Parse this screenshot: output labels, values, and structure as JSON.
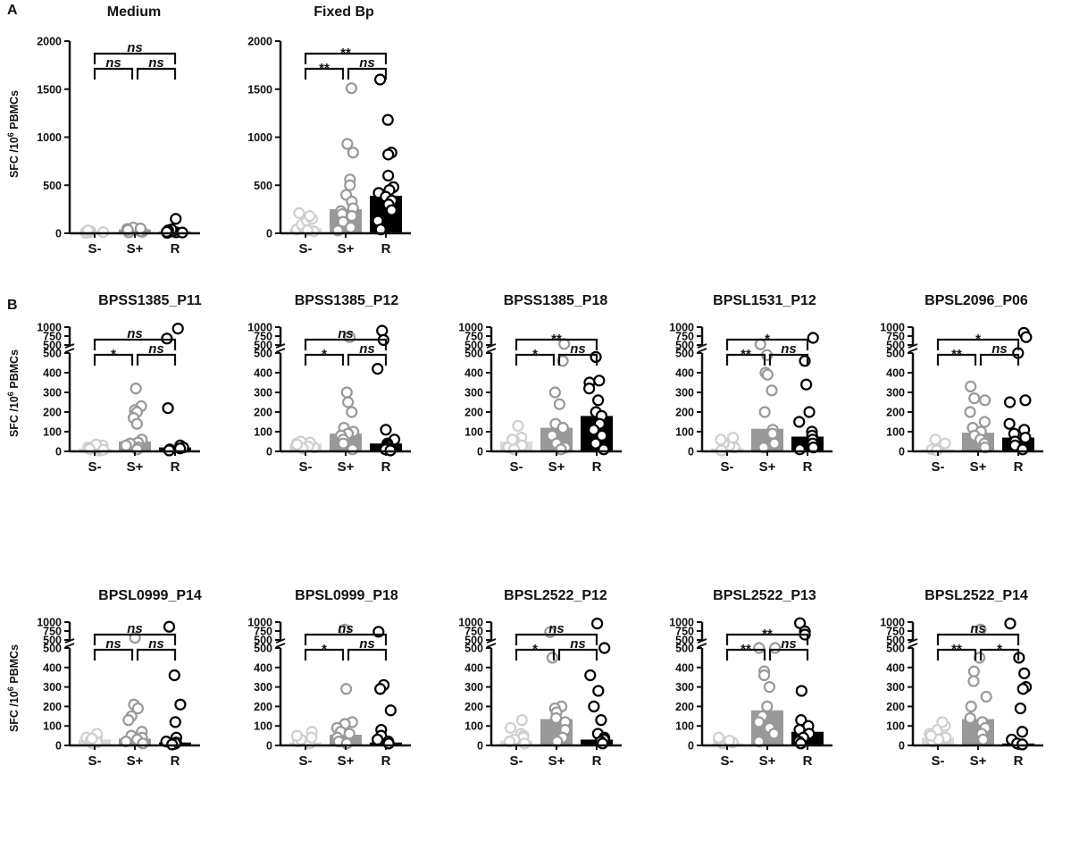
{
  "figure": {
    "panel_labels": [
      "A",
      "B"
    ],
    "y_axis_label_prefix": "SFC /10",
    "y_axis_label_sup": "6",
    "y_axis_label_suffix": " PBMCs"
  },
  "colors": {
    "S-": "#d9d9d9",
    "S+": "#999999",
    "R": "#000000",
    "axis": "#111111"
  },
  "chart_data": [
    {
      "type": "bar",
      "title": "Medium",
      "categories": [
        "S-",
        "S+",
        "R"
      ],
      "bar_values": [
        10,
        40,
        15
      ],
      "ylim": [
        0,
        2000
      ],
      "yticks": [
        "0",
        "500",
        "1000",
        "1500",
        "2000"
      ],
      "points": [
        [
          5,
          10,
          15,
          20,
          25,
          8,
          12,
          30
        ],
        [
          15,
          30,
          45,
          60,
          20,
          10,
          50,
          35
        ],
        [
          5,
          10,
          20,
          40,
          150,
          30,
          15,
          8
        ]
      ],
      "comparisons": [
        {
          "pair": "S- vs S+",
          "label": "ns"
        },
        {
          "pair": "S+ vs R",
          "label": "ns"
        },
        {
          "pair": "S- vs R",
          "label": "ns"
        }
      ]
    },
    {
      "type": "bar",
      "title": "Fixed Bp",
      "categories": [
        "S-",
        "S+",
        "R"
      ],
      "bar_values": [
        50,
        250,
        390
      ],
      "ylim": [
        0,
        2000
      ],
      "yticks": [
        "0",
        "500",
        "1000",
        "1500",
        "2000"
      ],
      "points": [
        [
          20,
          40,
          60,
          90,
          130,
          150,
          180,
          210,
          30
        ],
        [
          1510,
          930,
          840,
          560,
          500,
          400,
          330,
          260,
          230,
          200,
          180,
          120,
          60,
          30
        ],
        [
          1600,
          1180,
          840,
          820,
          600,
          480,
          450,
          420,
          380,
          340,
          300,
          240,
          130,
          40
        ]
      ],
      "comparisons": [
        {
          "pair": "S- vs S+",
          "label": "**"
        },
        {
          "pair": "S+ vs R",
          "label": "ns"
        },
        {
          "pair": "S- vs R",
          "label": "**"
        }
      ]
    },
    {
      "type": "bar",
      "title": "BPSS1385_P11",
      "categories": [
        "S-",
        "S+",
        "R"
      ],
      "bar_values": [
        15,
        50,
        20
      ],
      "ylim": [
        0,
        1000
      ],
      "yticks": [
        "0",
        "100",
        "200",
        "300",
        "400",
        "500",
        "500",
        "750",
        "1000"
      ],
      "points": [
        [
          5,
          10,
          15,
          20,
          25,
          30,
          35,
          12,
          8
        ],
        [
          320,
          230,
          210,
          200,
          170,
          140,
          60,
          45,
          40,
          30,
          20,
          10
        ],
        [
          960,
          680,
          220,
          30,
          20,
          15,
          10,
          5
        ]
      ],
      "comparisons": [
        {
          "pair": "S- vs S+",
          "label": "*"
        },
        {
          "pair": "S+ vs R",
          "label": "ns"
        },
        {
          "pair": "S- vs R",
          "label": "ns"
        }
      ]
    },
    {
      "type": "bar",
      "title": "BPSS1385_P12",
      "categories": [
        "S-",
        "S+",
        "R"
      ],
      "bar_values": [
        40,
        90,
        40
      ],
      "ylim": [
        0,
        1000
      ],
      "yticks": [
        "0",
        "100",
        "200",
        "300",
        "400",
        "500",
        "500",
        "750",
        "1000"
      ],
      "points": [
        [
          20,
          30,
          40,
          45,
          50,
          25,
          15,
          35
        ],
        [
          720,
          300,
          250,
          200,
          120,
          100,
          90,
          80,
          60,
          40,
          10
        ],
        [
          900,
          640,
          420,
          110,
          60,
          40,
          30,
          20,
          10,
          5
        ]
      ],
      "comparisons": [
        {
          "pair": "S- vs S+",
          "label": "*"
        },
        {
          "pair": "S+ vs R",
          "label": "ns"
        },
        {
          "pair": "S- vs R",
          "label": "ns"
        }
      ]
    },
    {
      "type": "bar",
      "title": "BPSS1385_P18",
      "categories": [
        "S-",
        "S+",
        "R"
      ],
      "bar_values": [
        50,
        120,
        180
      ],
      "ylim": [
        0,
        1000
      ],
      "yticks": [
        "0",
        "100",
        "200",
        "300",
        "400",
        "500",
        "500",
        "750",
        "1000"
      ],
      "points": [
        [
          130,
          70,
          50,
          40,
          30,
          20,
          60,
          10
        ],
        [
          530,
          460,
          300,
          240,
          140,
          120,
          80,
          40,
          20,
          10
        ],
        [
          480,
          360,
          350,
          320,
          260,
          200,
          180,
          140,
          110,
          80,
          40,
          10
        ]
      ],
      "comparisons": [
        {
          "pair": "S- vs S+",
          "label": "*"
        },
        {
          "pair": "S+ vs R",
          "label": "ns"
        },
        {
          "pair": "S- vs R",
          "label": "**"
        }
      ]
    },
    {
      "type": "bar",
      "title": "BPSL1531_P12",
      "categories": [
        "S-",
        "S+",
        "R"
      ],
      "bar_values": [
        15,
        115,
        75
      ],
      "ylim": [
        0,
        1000
      ],
      "yticks": [
        "0",
        "100",
        "200",
        "300",
        "400",
        "500",
        "500",
        "750",
        "1000"
      ],
      "points": [
        [
          10,
          20,
          30,
          40,
          60,
          70,
          5
        ],
        [
          520,
          490,
          400,
          390,
          310,
          200,
          110,
          90,
          40,
          20
        ],
        [
          700,
          460,
          340,
          200,
          150,
          100,
          80,
          60,
          40,
          20,
          10
        ]
      ],
      "comparisons": [
        {
          "pair": "S- vs S+",
          "label": "**"
        },
        {
          "pair": "S+ vs R",
          "label": "ns"
        },
        {
          "pair": "S- vs R",
          "label": "*"
        }
      ]
    },
    {
      "type": "bar",
      "title": "BPSL2096_P06",
      "categories": [
        "S-",
        "S+",
        "R"
      ],
      "bar_values": [
        10,
        95,
        70
      ],
      "ylim": [
        0,
        1000
      ],
      "yticks": [
        "0",
        "100",
        "200",
        "300",
        "400",
        "500",
        "500",
        "750",
        "1000"
      ],
      "points": [
        [
          10,
          20,
          40,
          60,
          5
        ],
        [
          330,
          270,
          260,
          200,
          150,
          120,
          100,
          80,
          60,
          40,
          20
        ],
        [
          840,
          720,
          500,
          260,
          250,
          140,
          110,
          90,
          70,
          50,
          30,
          10
        ]
      ],
      "comparisons": [
        {
          "pair": "S- vs S+",
          "label": "**"
        },
        {
          "pair": "S+ vs R",
          "label": "ns"
        },
        {
          "pair": "S- vs R",
          "label": "*"
        }
      ]
    },
    {
      "type": "bar",
      "title": "BPSL0999_P14",
      "categories": [
        "S-",
        "S+",
        "R"
      ],
      "bar_values": [
        30,
        35,
        15
      ],
      "ylim": [
        0,
        1000
      ],
      "yticks": [
        "0",
        "100",
        "200",
        "300",
        "400",
        "500",
        "500",
        "750",
        "1000"
      ],
      "points": [
        [
          10,
          20,
          30,
          40,
          50,
          60,
          25,
          15,
          35
        ],
        [
          560,
          210,
          190,
          150,
          130,
          70,
          50,
          40,
          30,
          20,
          10
        ],
        [
          870,
          360,
          210,
          120,
          40,
          20,
          15,
          10,
          5
        ]
      ],
      "comparisons": [
        {
          "pair": "S- vs S+",
          "label": "ns"
        },
        {
          "pair": "S+ vs R",
          "label": "ns"
        },
        {
          "pair": "S- vs R",
          "label": "ns"
        }
      ]
    },
    {
      "type": "bar",
      "title": "BPSL0999_P18",
      "categories": [
        "S-",
        "S+",
        "R"
      ],
      "bar_values": [
        15,
        55,
        15
      ],
      "ylim": [
        0,
        1000
      ],
      "yticks": [
        "0",
        "100",
        "200",
        "300",
        "400",
        "500",
        "500",
        "750",
        "1000"
      ],
      "points": [
        [
          10,
          20,
          30,
          50,
          70,
          40
        ],
        [
          790,
          290,
          120,
          110,
          90,
          70,
          60,
          40,
          20,
          10
        ],
        [
          730,
          310,
          290,
          180,
          80,
          50,
          30,
          20,
          10
        ]
      ],
      "comparisons": [
        {
          "pair": "S- vs S+",
          "label": "*"
        },
        {
          "pair": "S+ vs R",
          "label": "ns"
        },
        {
          "pair": "S- vs R",
          "label": "ns"
        }
      ]
    },
    {
      "type": "bar",
      "title": "BPSL2522_P12",
      "categories": [
        "S-",
        "S+",
        "R"
      ],
      "bar_values": [
        25,
        135,
        30
      ],
      "ylim": [
        0,
        1000
      ],
      "yticks": [
        "0",
        "100",
        "200",
        "300",
        "400",
        "500",
        "500",
        "750",
        "1000"
      ],
      "points": [
        [
          130,
          90,
          60,
          50,
          40,
          30,
          20,
          10
        ],
        [
          720,
          450,
          200,
          190,
          170,
          140,
          120,
          80,
          40,
          20
        ],
        [
          960,
          500,
          360,
          280,
          200,
          130,
          60,
          40,
          30,
          20,
          10
        ]
      ],
      "comparisons": [
        {
          "pair": "S- vs S+",
          "label": "*"
        },
        {
          "pair": "S+ vs R",
          "label": "ns"
        },
        {
          "pair": "S- vs R",
          "label": "ns"
        }
      ]
    },
    {
      "type": "bar",
      "title": "BPSL2522_P13",
      "categories": [
        "S-",
        "S+",
        "R"
      ],
      "bar_values": [
        10,
        180,
        70
      ],
      "ylim": [
        0,
        1000
      ],
      "yticks": [
        "0",
        "100",
        "200",
        "300",
        "400",
        "500",
        "500",
        "750",
        "1000"
      ],
      "points": [
        [
          10,
          20,
          30,
          40,
          15,
          25
        ],
        [
          500,
          500,
          380,
          360,
          300,
          200,
          150,
          120,
          90,
          60,
          20
        ],
        [
          970,
          740,
          650,
          280,
          130,
          100,
          80,
          60,
          40,
          20,
          10
        ]
      ],
      "comparisons": [
        {
          "pair": "S- vs S+",
          "label": "**"
        },
        {
          "pair": "S+ vs R",
          "label": "ns"
        },
        {
          "pair": "S- vs R",
          "label": "**"
        }
      ]
    },
    {
      "type": "bar",
      "title": "BPSL2522_P14",
      "categories": [
        "S-",
        "S+",
        "R"
      ],
      "bar_values": [
        40,
        135,
        10
      ],
      "ylim": [
        0,
        1000
      ],
      "yticks": [
        "0",
        "100",
        "200",
        "300",
        "400",
        "500",
        "500",
        "750",
        "1000"
      ],
      "points": [
        [
          20,
          40,
          60,
          80,
          100,
          120,
          30,
          50
        ],
        [
          790,
          450,
          380,
          330,
          250,
          200,
          140,
          120,
          90,
          60,
          30
        ],
        [
          960,
          450,
          370,
          300,
          290,
          190,
          70,
          30,
          10,
          5
        ]
      ],
      "comparisons": [
        {
          "pair": "S- vs S+",
          "label": "**"
        },
        {
          "pair": "S+ vs R",
          "label": "*"
        },
        {
          "pair": "S- vs R",
          "label": "ns"
        }
      ]
    }
  ]
}
